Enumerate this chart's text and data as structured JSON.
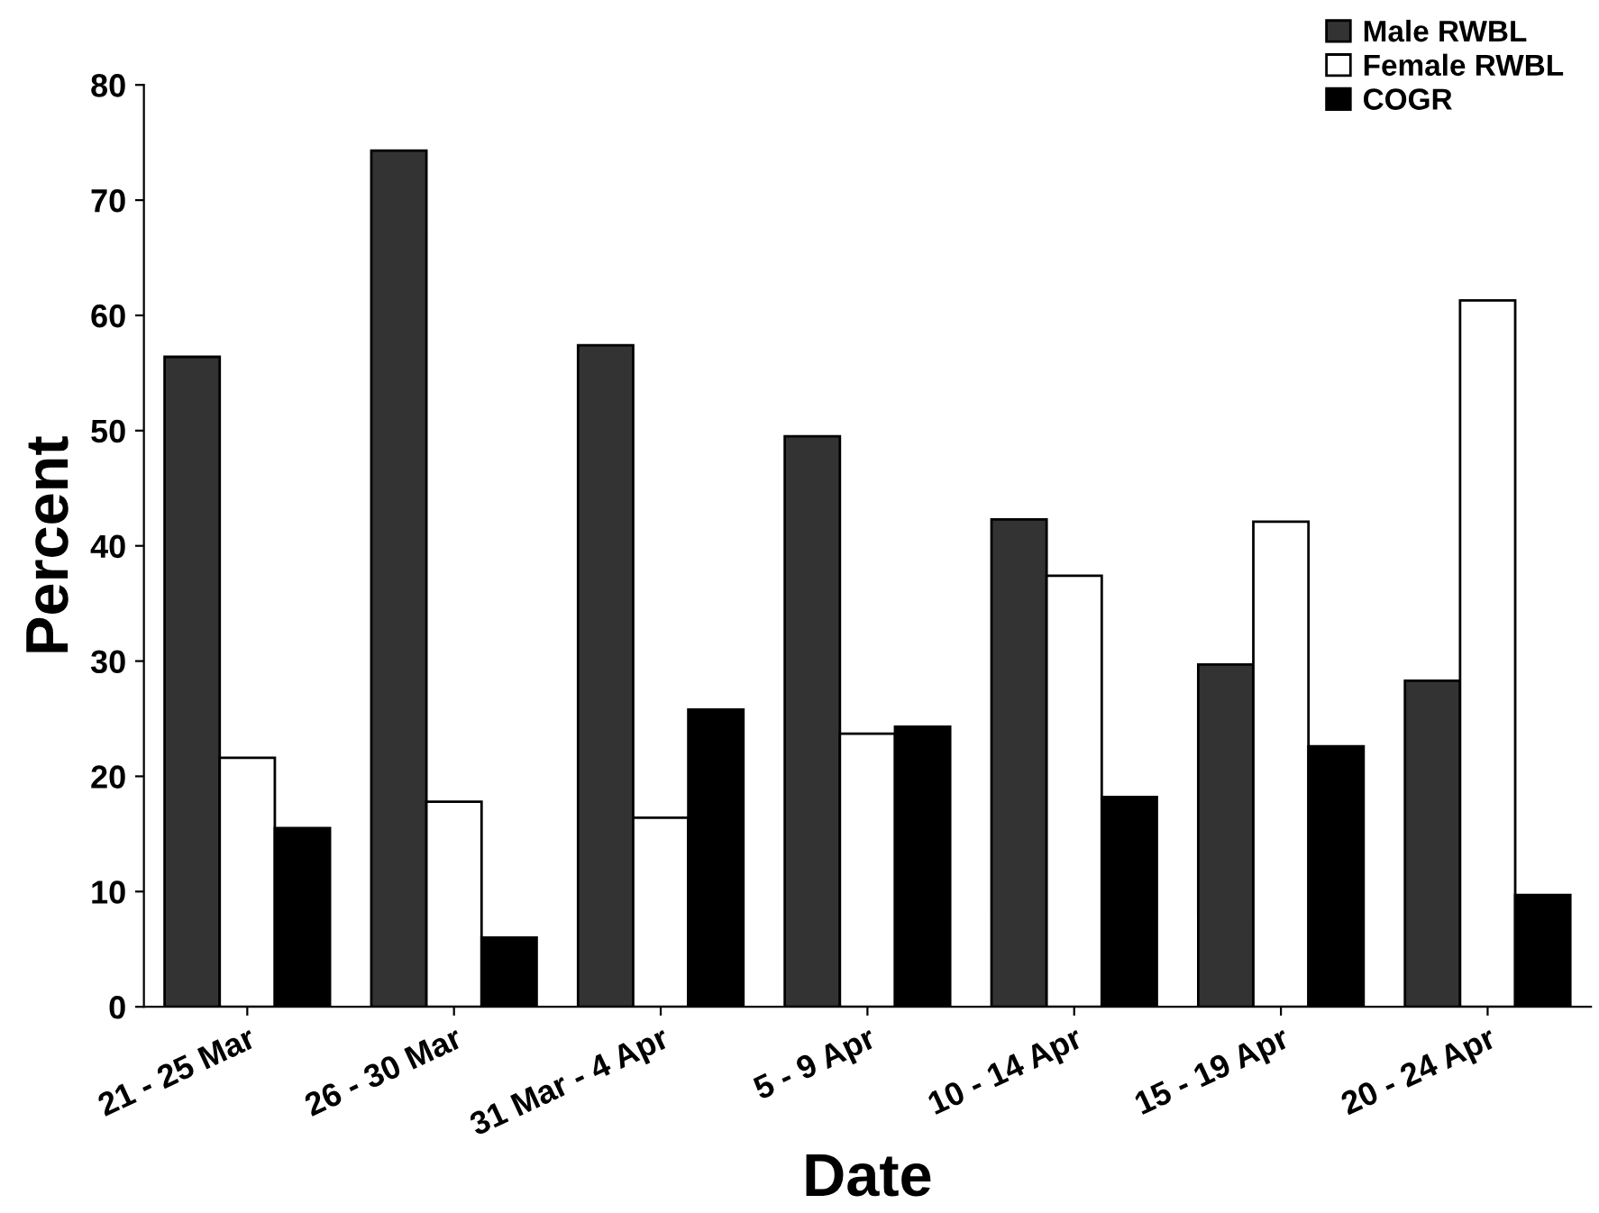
{
  "chart_data": {
    "type": "bar",
    "xlabel": "Date",
    "ylabel": "Percent",
    "categories": [
      "21 - 25 Mar",
      "26 - 30 Mar",
      "31 Mar - 4 Apr",
      "5 - 9 Apr",
      "10 - 14 Apr",
      "15 - 19 Apr",
      "20 - 24 Apr"
    ],
    "series": [
      {
        "name": "Male RWBL",
        "color": "#333333",
        "values": [
          56.4,
          74.3,
          57.4,
          49.5,
          42.3,
          29.7,
          28.3
        ]
      },
      {
        "name": "Female RWBL",
        "color": "#ffffff",
        "values": [
          21.6,
          17.8,
          16.4,
          23.7,
          37.4,
          42.1,
          61.3
        ]
      },
      {
        "name": "COGR",
        "color": "#000000",
        "values": [
          15.5,
          6.0,
          25.8,
          24.3,
          18.2,
          22.6,
          9.7
        ]
      }
    ],
    "ylim": [
      0,
      80
    ],
    "yticks": [
      0,
      10,
      20,
      30,
      40,
      50,
      60,
      70,
      80
    ],
    "grid": false,
    "legend": "top right"
  }
}
